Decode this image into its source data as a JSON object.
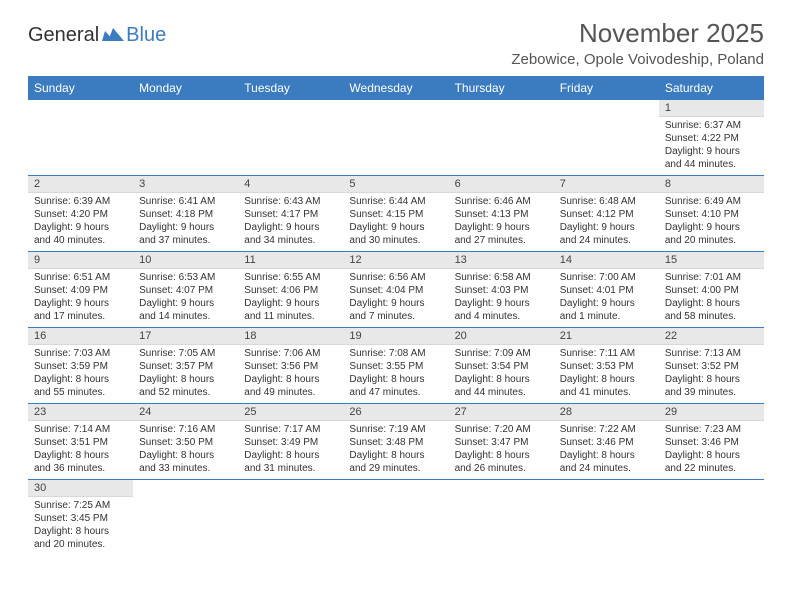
{
  "logo": {
    "general": "General",
    "blue": "Blue"
  },
  "header": {
    "month_title": "November 2025",
    "location": "Zebowice, Opole Voivodeship, Poland"
  },
  "colors": {
    "header_bg": "#3b7bbf",
    "header_text": "#ffffff",
    "daynum_bg": "#e8e8e8",
    "row_border": "#3b7bbf",
    "logo_blue": "#3b7bbf"
  },
  "weekdays": [
    "Sunday",
    "Monday",
    "Tuesday",
    "Wednesday",
    "Thursday",
    "Friday",
    "Saturday"
  ],
  "weeks": [
    [
      null,
      null,
      null,
      null,
      null,
      null,
      {
        "n": "1",
        "sr": "Sunrise: 6:37 AM",
        "ss": "Sunset: 4:22 PM",
        "d1": "Daylight: 9 hours",
        "d2": "and 44 minutes."
      }
    ],
    [
      {
        "n": "2",
        "sr": "Sunrise: 6:39 AM",
        "ss": "Sunset: 4:20 PM",
        "d1": "Daylight: 9 hours",
        "d2": "and 40 minutes."
      },
      {
        "n": "3",
        "sr": "Sunrise: 6:41 AM",
        "ss": "Sunset: 4:18 PM",
        "d1": "Daylight: 9 hours",
        "d2": "and 37 minutes."
      },
      {
        "n": "4",
        "sr": "Sunrise: 6:43 AM",
        "ss": "Sunset: 4:17 PM",
        "d1": "Daylight: 9 hours",
        "d2": "and 34 minutes."
      },
      {
        "n": "5",
        "sr": "Sunrise: 6:44 AM",
        "ss": "Sunset: 4:15 PM",
        "d1": "Daylight: 9 hours",
        "d2": "and 30 minutes."
      },
      {
        "n": "6",
        "sr": "Sunrise: 6:46 AM",
        "ss": "Sunset: 4:13 PM",
        "d1": "Daylight: 9 hours",
        "d2": "and 27 minutes."
      },
      {
        "n": "7",
        "sr": "Sunrise: 6:48 AM",
        "ss": "Sunset: 4:12 PM",
        "d1": "Daylight: 9 hours",
        "d2": "and 24 minutes."
      },
      {
        "n": "8",
        "sr": "Sunrise: 6:49 AM",
        "ss": "Sunset: 4:10 PM",
        "d1": "Daylight: 9 hours",
        "d2": "and 20 minutes."
      }
    ],
    [
      {
        "n": "9",
        "sr": "Sunrise: 6:51 AM",
        "ss": "Sunset: 4:09 PM",
        "d1": "Daylight: 9 hours",
        "d2": "and 17 minutes."
      },
      {
        "n": "10",
        "sr": "Sunrise: 6:53 AM",
        "ss": "Sunset: 4:07 PM",
        "d1": "Daylight: 9 hours",
        "d2": "and 14 minutes."
      },
      {
        "n": "11",
        "sr": "Sunrise: 6:55 AM",
        "ss": "Sunset: 4:06 PM",
        "d1": "Daylight: 9 hours",
        "d2": "and 11 minutes."
      },
      {
        "n": "12",
        "sr": "Sunrise: 6:56 AM",
        "ss": "Sunset: 4:04 PM",
        "d1": "Daylight: 9 hours",
        "d2": "and 7 minutes."
      },
      {
        "n": "13",
        "sr": "Sunrise: 6:58 AM",
        "ss": "Sunset: 4:03 PM",
        "d1": "Daylight: 9 hours",
        "d2": "and 4 minutes."
      },
      {
        "n": "14",
        "sr": "Sunrise: 7:00 AM",
        "ss": "Sunset: 4:01 PM",
        "d1": "Daylight: 9 hours",
        "d2": "and 1 minute."
      },
      {
        "n": "15",
        "sr": "Sunrise: 7:01 AM",
        "ss": "Sunset: 4:00 PM",
        "d1": "Daylight: 8 hours",
        "d2": "and 58 minutes."
      }
    ],
    [
      {
        "n": "16",
        "sr": "Sunrise: 7:03 AM",
        "ss": "Sunset: 3:59 PM",
        "d1": "Daylight: 8 hours",
        "d2": "and 55 minutes."
      },
      {
        "n": "17",
        "sr": "Sunrise: 7:05 AM",
        "ss": "Sunset: 3:57 PM",
        "d1": "Daylight: 8 hours",
        "d2": "and 52 minutes."
      },
      {
        "n": "18",
        "sr": "Sunrise: 7:06 AM",
        "ss": "Sunset: 3:56 PM",
        "d1": "Daylight: 8 hours",
        "d2": "and 49 minutes."
      },
      {
        "n": "19",
        "sr": "Sunrise: 7:08 AM",
        "ss": "Sunset: 3:55 PM",
        "d1": "Daylight: 8 hours",
        "d2": "and 47 minutes."
      },
      {
        "n": "20",
        "sr": "Sunrise: 7:09 AM",
        "ss": "Sunset: 3:54 PM",
        "d1": "Daylight: 8 hours",
        "d2": "and 44 minutes."
      },
      {
        "n": "21",
        "sr": "Sunrise: 7:11 AM",
        "ss": "Sunset: 3:53 PM",
        "d1": "Daylight: 8 hours",
        "d2": "and 41 minutes."
      },
      {
        "n": "22",
        "sr": "Sunrise: 7:13 AM",
        "ss": "Sunset: 3:52 PM",
        "d1": "Daylight: 8 hours",
        "d2": "and 39 minutes."
      }
    ],
    [
      {
        "n": "23",
        "sr": "Sunrise: 7:14 AM",
        "ss": "Sunset: 3:51 PM",
        "d1": "Daylight: 8 hours",
        "d2": "and 36 minutes."
      },
      {
        "n": "24",
        "sr": "Sunrise: 7:16 AM",
        "ss": "Sunset: 3:50 PM",
        "d1": "Daylight: 8 hours",
        "d2": "and 33 minutes."
      },
      {
        "n": "25",
        "sr": "Sunrise: 7:17 AM",
        "ss": "Sunset: 3:49 PM",
        "d1": "Daylight: 8 hours",
        "d2": "and 31 minutes."
      },
      {
        "n": "26",
        "sr": "Sunrise: 7:19 AM",
        "ss": "Sunset: 3:48 PM",
        "d1": "Daylight: 8 hours",
        "d2": "and 29 minutes."
      },
      {
        "n": "27",
        "sr": "Sunrise: 7:20 AM",
        "ss": "Sunset: 3:47 PM",
        "d1": "Daylight: 8 hours",
        "d2": "and 26 minutes."
      },
      {
        "n": "28",
        "sr": "Sunrise: 7:22 AM",
        "ss": "Sunset: 3:46 PM",
        "d1": "Daylight: 8 hours",
        "d2": "and 24 minutes."
      },
      {
        "n": "29",
        "sr": "Sunrise: 7:23 AM",
        "ss": "Sunset: 3:46 PM",
        "d1": "Daylight: 8 hours",
        "d2": "and 22 minutes."
      }
    ],
    [
      {
        "n": "30",
        "sr": "Sunrise: 7:25 AM",
        "ss": "Sunset: 3:45 PM",
        "d1": "Daylight: 8 hours",
        "d2": "and 20 minutes."
      },
      null,
      null,
      null,
      null,
      null,
      null
    ]
  ]
}
